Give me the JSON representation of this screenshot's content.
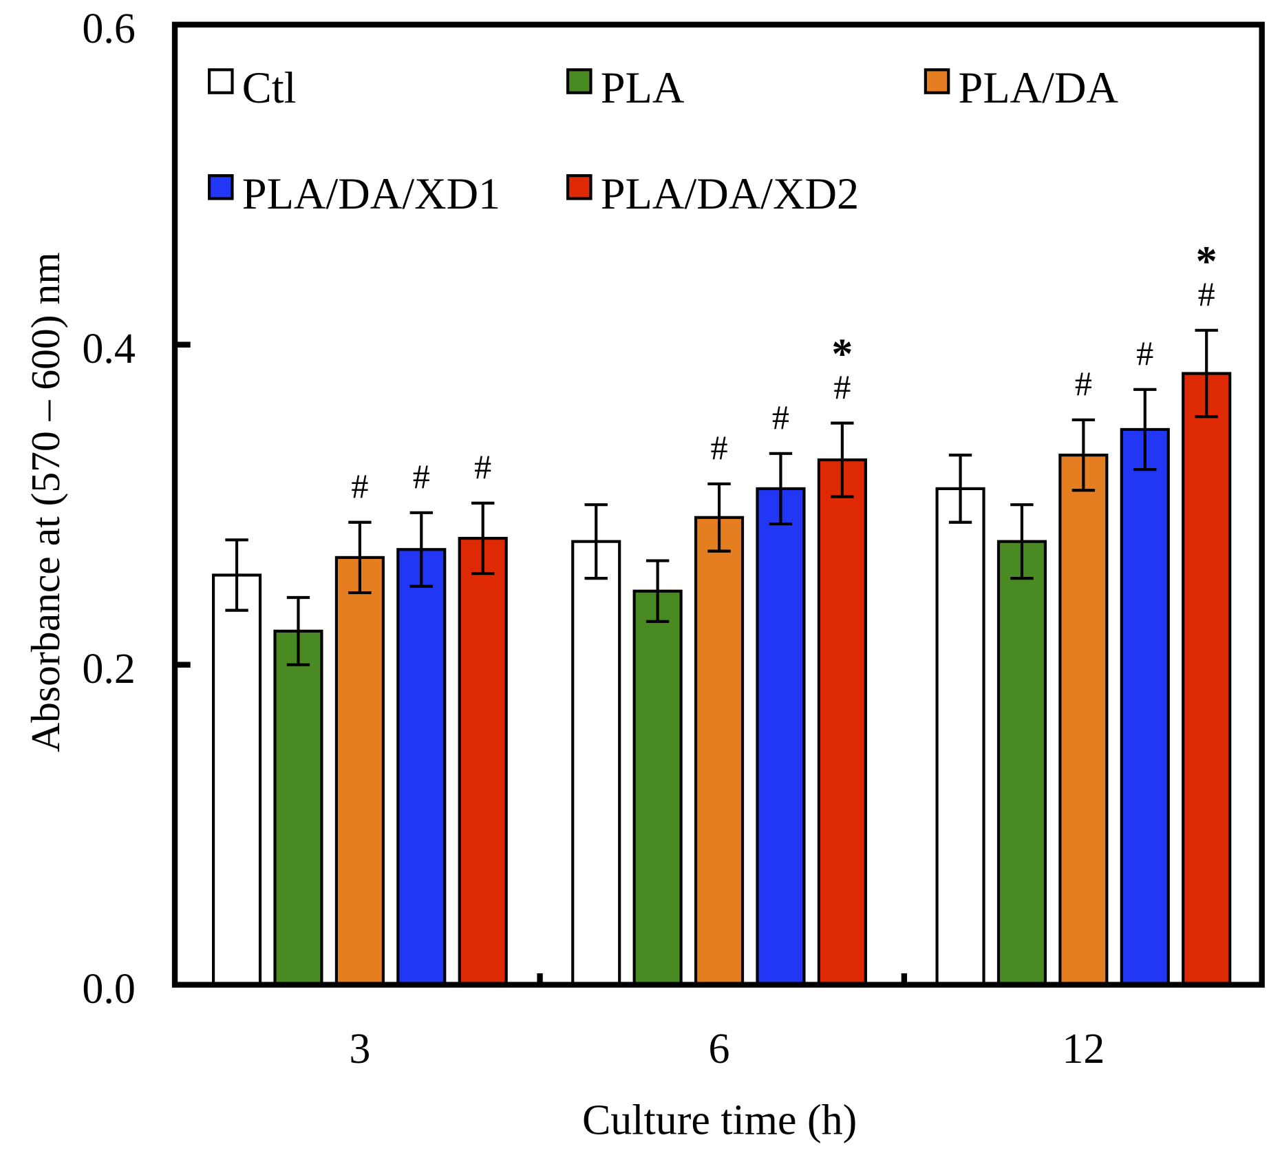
{
  "chart_data": {
    "type": "bar",
    "title": "",
    "xlabel": "Culture time (h)",
    "ylabel": "Absorbance at (570 – 600) nm",
    "ylim": [
      0,
      0.6
    ],
    "yticks": [
      "0.0",
      "0.2",
      "0.4",
      "0.6"
    ],
    "ytick_values": [
      0,
      0.2,
      0.4,
      0.6
    ],
    "categories": [
      "3",
      "6",
      "12"
    ],
    "legend_position": "top",
    "series": [
      {
        "name": "Ctl",
        "color": "#ffffff",
        "values": [
          0.256,
          0.277,
          0.31
        ],
        "errors": [
          0.022,
          0.023,
          0.021
        ],
        "marks": [
          "",
          "",
          ""
        ]
      },
      {
        "name": "PLA",
        "color": "#4a8a22",
        "values": [
          0.221,
          0.246,
          0.277
        ],
        "errors": [
          0.021,
          0.019,
          0.023
        ],
        "marks": [
          "",
          "",
          ""
        ]
      },
      {
        "name": "PLA/DA",
        "color": "#e57e20",
        "values": [
          0.267,
          0.292,
          0.331
        ],
        "errors": [
          0.022,
          0.021,
          0.022
        ],
        "marks": [
          "#",
          "#",
          "#"
        ]
      },
      {
        "name": "PLA/DA/XD1",
        "color": "#2236f5",
        "values": [
          0.272,
          0.31,
          0.347
        ],
        "errors": [
          0.023,
          0.022,
          0.025
        ],
        "marks": [
          "#",
          "#",
          "#"
        ]
      },
      {
        "name": "PLA/DA/XD2",
        "color": "#dd2a04",
        "values": [
          0.279,
          0.328,
          0.382
        ],
        "errors": [
          0.022,
          0.023,
          0.027
        ],
        "marks": [
          "#",
          "*#",
          "*#"
        ]
      }
    ]
  }
}
